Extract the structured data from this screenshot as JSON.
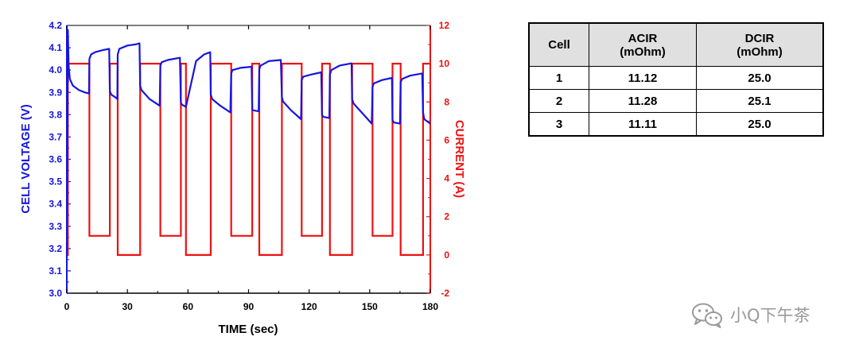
{
  "chart_data": {
    "type": "line",
    "xlabel": "TIME (sec)",
    "ylabel": "CELL VOLTAGE (V)",
    "y2label": "CURRENT (A)",
    "xlim": [
      0,
      180
    ],
    "ylim": [
      3.0,
      4.2
    ],
    "y2lim": [
      -2,
      12
    ],
    "x_ticks": [
      0,
      30,
      60,
      90,
      120,
      150,
      180
    ],
    "y_ticks": [
      3.0,
      3.1,
      3.2,
      3.3,
      3.4,
      3.5,
      3.6,
      3.7,
      3.8,
      3.9,
      4.0,
      4.1,
      4.2
    ],
    "y2_ticks": [
      -2,
      0,
      2,
      4,
      6,
      8,
      10,
      12
    ],
    "grid": false,
    "colors": {
      "voltage": "#1515e0",
      "current": "#ee1111"
    },
    "series": [
      {
        "axis": "left",
        "x": [
          0,
          0.5,
          0.9,
          1.5,
          3,
          6,
          9,
          11,
          11.2,
          12,
          14,
          18,
          21,
          21.3,
          22,
          24.5,
          25,
          25.2,
          26,
          30,
          34,
          36,
          36.3,
          37,
          41,
          46,
          46.3,
          47,
          50,
          56,
          56.5,
          57,
          59,
          64,
          68,
          71,
          71.3,
          72,
          76,
          81,
          81.4,
          82,
          86,
          91.5,
          91.8,
          92,
          95,
          95.3,
          96,
          100,
          106,
          106.5,
          107,
          111,
          116,
          116.3,
          117,
          121,
          126,
          126.4,
          127,
          130,
          130.3,
          131,
          135,
          141,
          141.3,
          142,
          146,
          151,
          151.4,
          152,
          156,
          161,
          161.3,
          162,
          165,
          165.3,
          166,
          170,
          176,
          176.4,
          177,
          180
        ],
        "y": [
          3.16,
          4.18,
          4.02,
          3.96,
          3.93,
          3.91,
          3.9,
          3.895,
          4.05,
          4.07,
          4.08,
          4.09,
          4.095,
          3.905,
          3.89,
          3.875,
          3.87,
          4.07,
          4.095,
          4.11,
          4.115,
          4.12,
          3.93,
          3.91,
          3.87,
          3.84,
          4.02,
          4.035,
          4.045,
          4.055,
          3.855,
          3.845,
          3.835,
          4.04,
          4.07,
          4.08,
          3.89,
          3.87,
          3.84,
          3.81,
          3.985,
          4.0,
          4.01,
          4.015,
          3.83,
          3.82,
          3.815,
          4.005,
          4.02,
          4.04,
          4.045,
          3.88,
          3.86,
          3.82,
          3.78,
          3.955,
          3.97,
          3.98,
          3.99,
          3.8,
          3.79,
          3.785,
          3.98,
          4.0,
          4.02,
          4.03,
          3.87,
          3.85,
          3.81,
          3.76,
          3.925,
          3.94,
          3.955,
          3.965,
          3.775,
          3.765,
          3.76,
          3.945,
          3.96,
          3.975,
          3.985,
          3.81,
          3.78,
          3.76
        ],
        "name": ""
      },
      {
        "axis": "right",
        "x": [
          0,
          0.5,
          0.5,
          11.2,
          11.2,
          21.3,
          21.3,
          25.2,
          25.2,
          36.3,
          36.3,
          46.3,
          46.3,
          56.5,
          56.5,
          59,
          59,
          71.3,
          71.3,
          81.4,
          81.4,
          91.8,
          91.8,
          95.3,
          95.3,
          106.5,
          106.5,
          116.3,
          116.3,
          126.4,
          126.4,
          130.3,
          130.3,
          141.3,
          141.3,
          151.4,
          151.4,
          161.3,
          161.3,
          165.3,
          165.3,
          176.4,
          176.4,
          180
        ],
        "y": [
          0,
          0,
          10,
          10,
          1,
          1,
          10,
          10,
          0,
          0,
          10,
          10,
          1,
          1,
          10,
          10,
          0,
          0,
          10,
          10,
          1,
          1,
          10,
          10,
          0,
          0,
          10,
          10,
          1,
          1,
          10,
          10,
          0,
          0,
          10,
          10,
          1,
          1,
          10,
          10,
          0,
          0,
          10,
          10
        ],
        "name": ""
      }
    ]
  },
  "table": {
    "headers": [
      [
        "Cell"
      ],
      [
        "ACIR",
        "(mOhm)"
      ],
      [
        "DCIR",
        "(mOhm)"
      ]
    ],
    "rows": [
      [
        "1",
        "11.12",
        "25.0"
      ],
      [
        "2",
        "11.28",
        "25.1"
      ],
      [
        "3",
        "11.11",
        "25.0"
      ]
    ]
  },
  "watermark": {
    "text": "小Q下午茶",
    "icon": "wechat-icon"
  }
}
